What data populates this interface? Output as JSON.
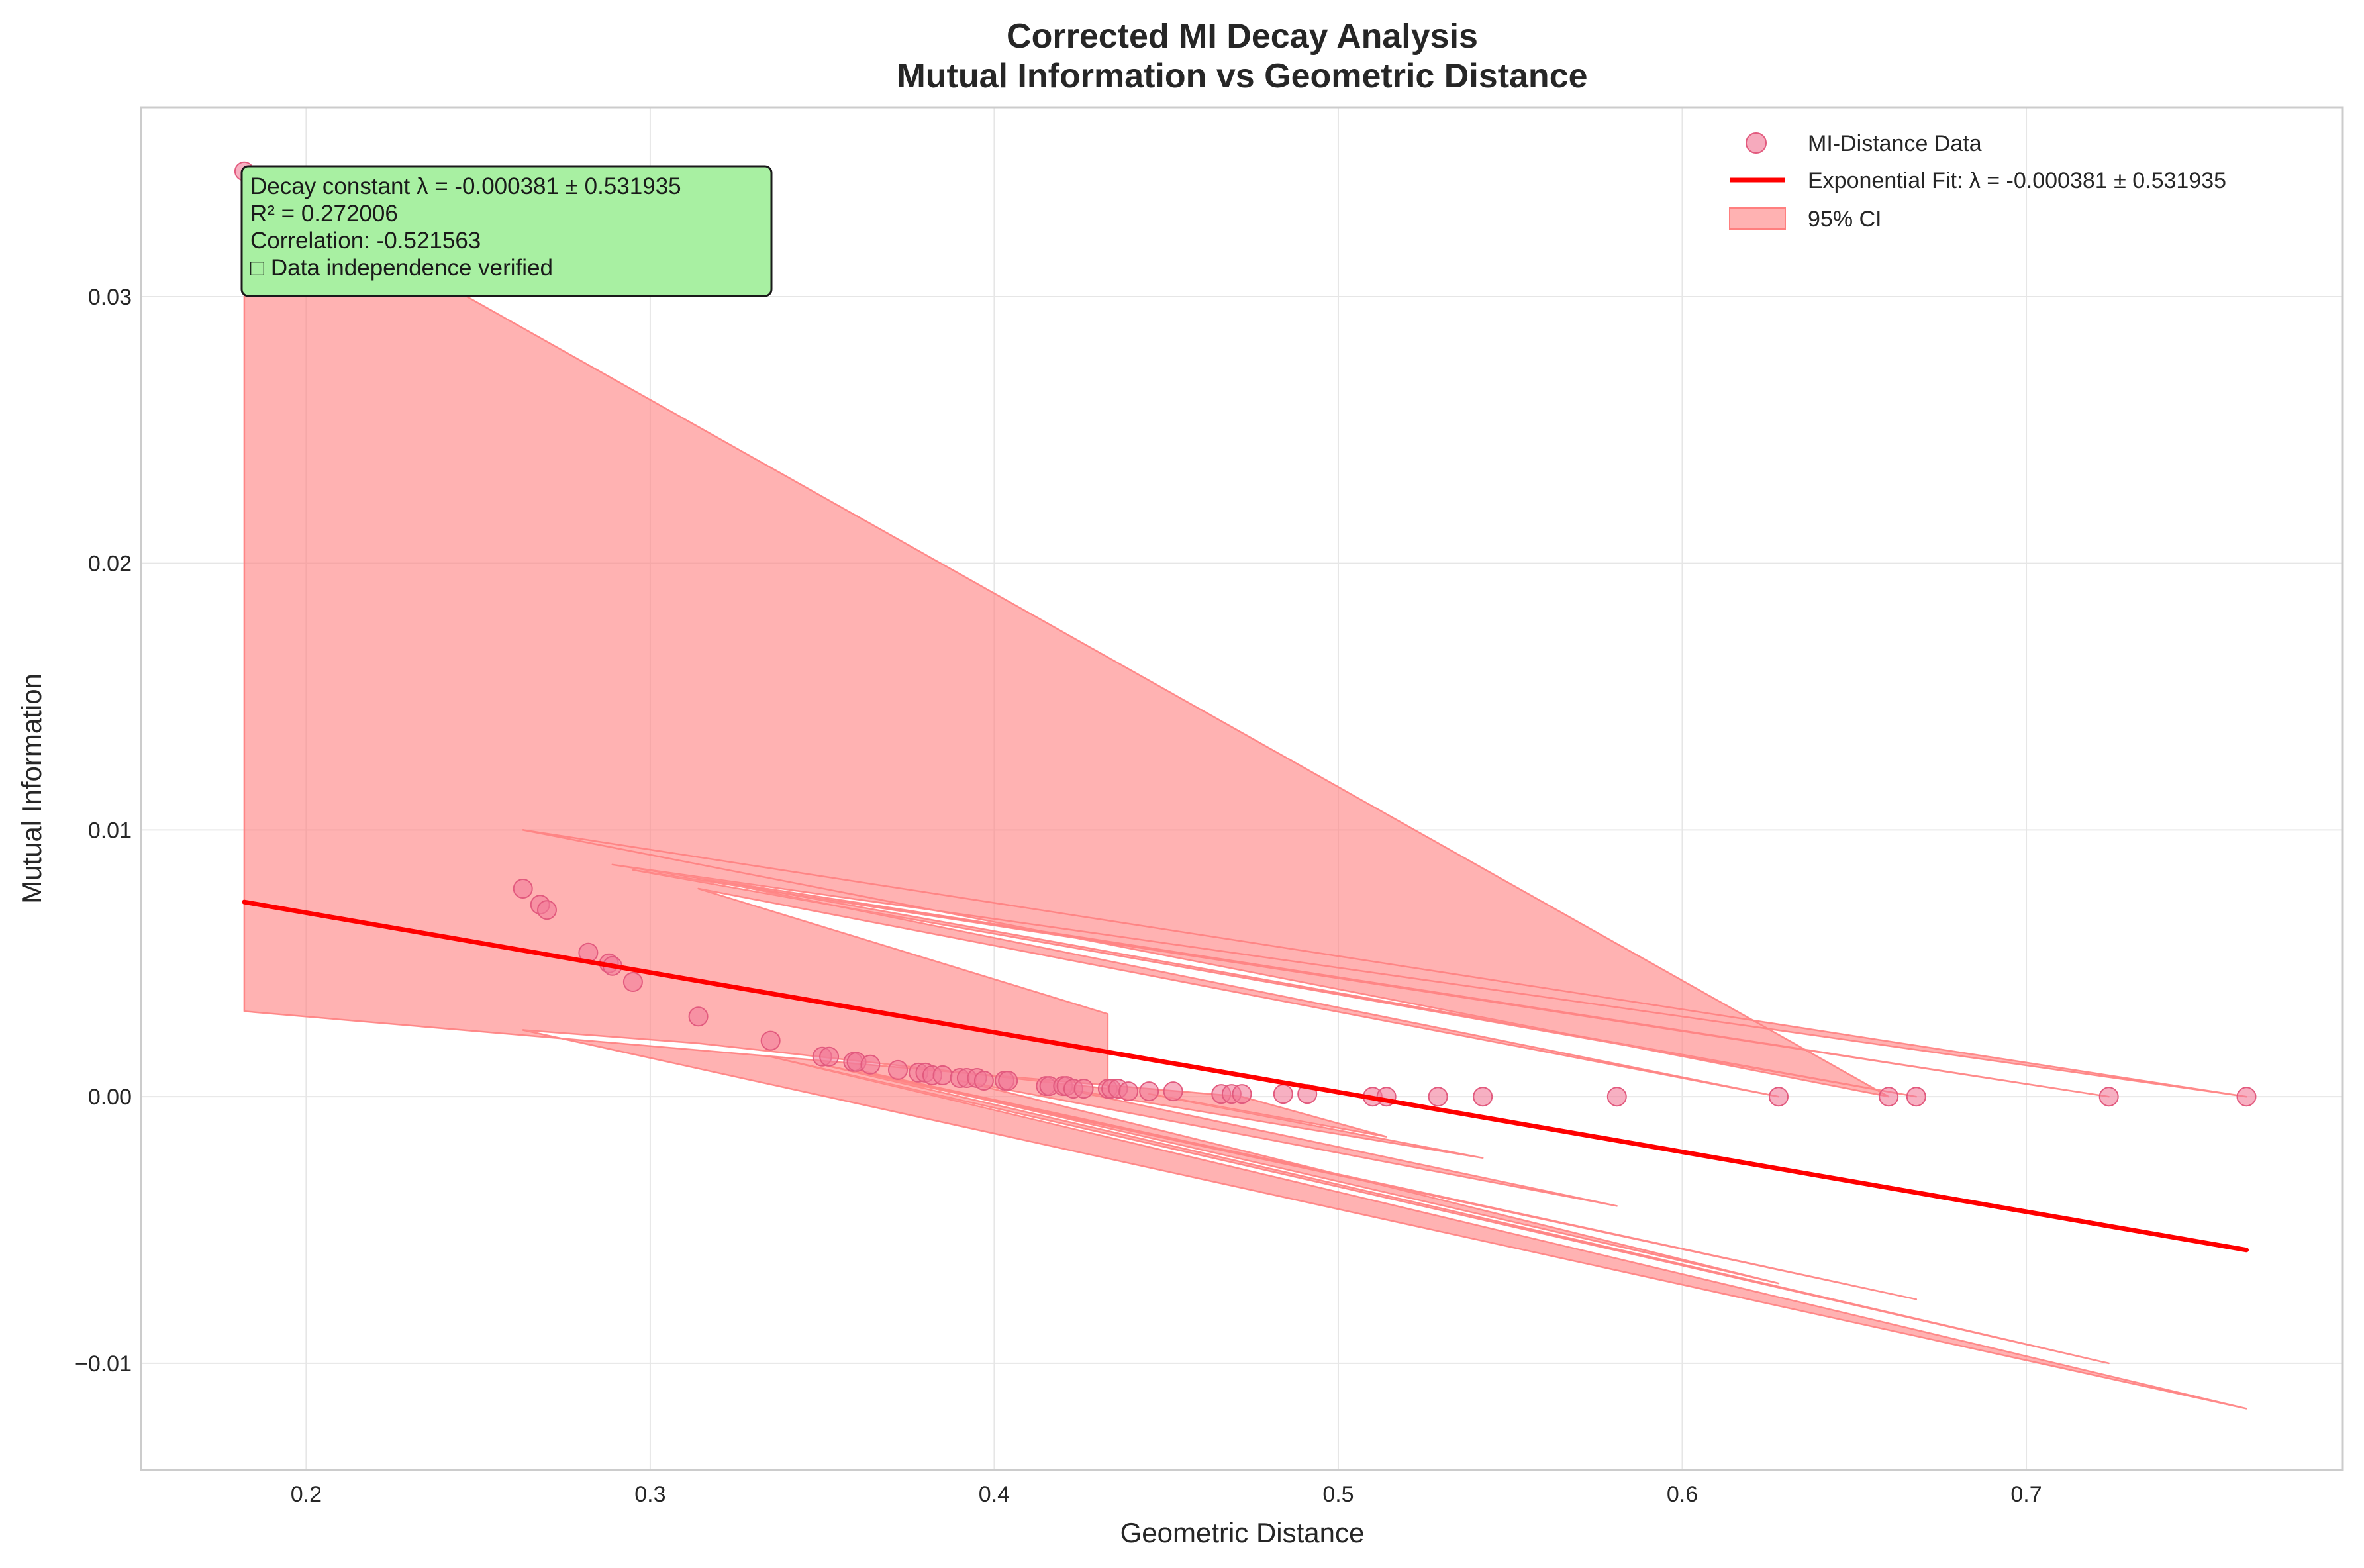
{
  "chart_data": {
    "type": "scatter",
    "title": "Corrected MI Decay Analysis",
    "subtitle": "Mutual Information vs Geometric Distance",
    "xlabel": "Geometric Distance",
    "ylabel": "Mutual Information",
    "xlim": [
      0.152,
      0.792
    ],
    "ylim": [
      -0.014,
      0.0371
    ],
    "xticks": [
      0.2,
      0.3,
      0.4,
      0.5,
      0.6,
      0.7
    ],
    "xtick_labels": [
      "0.2",
      "0.3",
      "0.4",
      "0.5",
      "0.6",
      "0.7"
    ],
    "yticks": [
      -0.01,
      0.0,
      0.01,
      0.02,
      0.03
    ],
    "ytick_labels": [
      "−0.01",
      "0.00",
      "0.01",
      "0.02",
      "0.03"
    ],
    "grid": true,
    "legend_position": "top-right",
    "colors": {
      "scatter": "#f17c9a",
      "fit": "#ff0000",
      "ci_fill": "#ff7f7f",
      "annotation_bg": "#a8f0a2"
    },
    "series": [
      {
        "name": "MI-Distance Data",
        "kind": "scatter",
        "points": [
          [
            0.182,
            0.0347
          ],
          [
            0.263,
            0.0078
          ],
          [
            0.268,
            0.0072
          ],
          [
            0.27,
            0.007
          ],
          [
            0.282,
            0.0054
          ],
          [
            0.288,
            0.005
          ],
          [
            0.289,
            0.0049
          ],
          [
            0.295,
            0.0043
          ],
          [
            0.314,
            0.003
          ],
          [
            0.335,
            0.0021
          ],
          [
            0.35,
            0.0015
          ],
          [
            0.352,
            0.0015
          ],
          [
            0.359,
            0.0013
          ],
          [
            0.36,
            0.0013
          ],
          [
            0.364,
            0.0012
          ],
          [
            0.372,
            0.001
          ],
          [
            0.378,
            0.0009
          ],
          [
            0.38,
            0.0009
          ],
          [
            0.382,
            0.0008
          ],
          [
            0.385,
            0.0008
          ],
          [
            0.39,
            0.0007
          ],
          [
            0.392,
            0.0007
          ],
          [
            0.395,
            0.0007
          ],
          [
            0.397,
            0.0006
          ],
          [
            0.403,
            0.0006
          ],
          [
            0.404,
            0.0006
          ],
          [
            0.415,
            0.0004
          ],
          [
            0.416,
            0.0004
          ],
          [
            0.42,
            0.0004
          ],
          [
            0.421,
            0.0004
          ],
          [
            0.423,
            0.0003
          ],
          [
            0.426,
            0.0003
          ],
          [
            0.433,
            0.0003
          ],
          [
            0.434,
            0.0003
          ],
          [
            0.436,
            0.0003
          ],
          [
            0.439,
            0.0002
          ],
          [
            0.445,
            0.0002
          ],
          [
            0.452,
            0.0002
          ],
          [
            0.466,
            0.0001
          ],
          [
            0.469,
            0.0001
          ],
          [
            0.472,
            0.0001
          ],
          [
            0.484,
            0.0001
          ],
          [
            0.491,
            0.0001
          ],
          [
            0.51,
            0.0
          ],
          [
            0.514,
            0.0
          ],
          [
            0.529,
            0.0
          ],
          [
            0.542,
            0.0
          ],
          [
            0.581,
            0.0
          ],
          [
            0.628,
            0.0
          ],
          [
            0.66,
            0.0
          ],
          [
            0.668,
            0.0
          ],
          [
            0.724,
            0.0
          ],
          [
            0.764,
            0.0
          ]
        ]
      },
      {
        "name": "Exponential Fit: λ = -0.000381 ± 0.531935",
        "kind": "line",
        "x": [
          0.182,
          0.764
        ],
        "y": [
          0.0073,
          -0.00575
        ]
      },
      {
        "name": "95% CI",
        "kind": "band",
        "upper": [
          [
            0.182,
            0.0347
          ],
          [
            0.66,
            0.0
          ],
          [
            0.263,
            0.01
          ],
          [
            0.764,
            0.0
          ],
          [
            0.289,
            0.0087
          ],
          [
            0.724,
            0.0
          ],
          [
            0.295,
            0.0085
          ],
          [
            0.668,
            0.0
          ],
          [
            0.314,
            0.0082
          ],
          [
            0.628,
            0.0
          ],
          [
            0.314,
            0.0078
          ],
          [
            0.433,
            0.0031
          ]
        ],
        "lower": [
          [
            0.433,
            0.0031
          ],
          [
            0.433,
            0.0003
          ],
          [
            0.314,
            0.002
          ],
          [
            0.263,
            0.0025
          ],
          [
            0.764,
            -0.0117
          ],
          [
            0.335,
            0.0015
          ],
          [
            0.724,
            -0.01
          ],
          [
            0.35,
            0.0012
          ],
          [
            0.668,
            -0.0076
          ],
          [
            0.36,
            0.001
          ],
          [
            0.628,
            -0.007
          ],
          [
            0.39,
            0.0006
          ],
          [
            0.581,
            -0.0041
          ],
          [
            0.42,
            0.0003
          ],
          [
            0.542,
            -0.0023
          ],
          [
            0.445,
            0.0001
          ],
          [
            0.514,
            -0.0015
          ],
          [
            0.472,
            0.0
          ],
          [
            0.182,
            0.0032
          ]
        ]
      }
    ],
    "annotation": {
      "lines": [
        "Decay constant λ = -0.000381 ± 0.531935",
        "R² = 0.272006",
        "Correlation: -0.521563",
        "□ Data independence verified"
      ]
    }
  }
}
